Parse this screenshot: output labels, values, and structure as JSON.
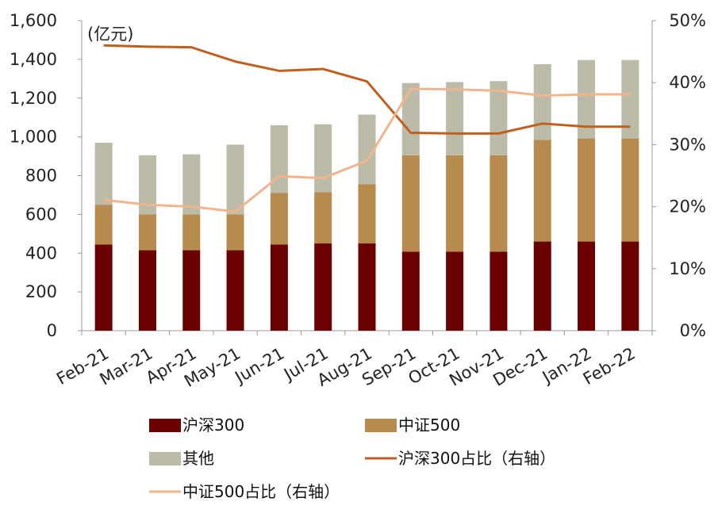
{
  "chart_data": {
    "type": "bar",
    "stacked": true,
    "unit_label": "(亿元)",
    "categories": [
      "Feb-21",
      "Mar-21",
      "Apr-21",
      "May-21",
      "Jun-21",
      "Jul-21",
      "Aug-21",
      "Sep-21",
      "Oct-21",
      "Nov-21",
      "Dec-21",
      "Jan-22",
      "Feb-22"
    ],
    "y_left": {
      "min": 0,
      "max": 1600,
      "ticks": [
        "0",
        "200",
        "400",
        "600",
        "800",
        "1,000",
        "1,200",
        "1,400",
        "1,600"
      ]
    },
    "y_right": {
      "min": 0,
      "max": 50,
      "ticks": [
        "0%",
        "10%",
        "20%",
        "30%",
        "40%",
        "50%"
      ]
    },
    "bar_series": [
      {
        "name": "沪深300",
        "color": "#6B0000",
        "values": [
          445,
          415,
          415,
          415,
          445,
          450,
          450,
          408,
          408,
          408,
          460,
          460,
          460
        ]
      },
      {
        "name": "中证500",
        "color": "#B78A4E",
        "values": [
          205,
          185,
          185,
          185,
          265,
          265,
          305,
          497,
          497,
          497,
          525,
          532,
          532
        ]
      },
      {
        "name": "其他",
        "color": "#BCBBA8",
        "values": [
          320,
          305,
          310,
          360,
          350,
          350,
          360,
          373,
          378,
          383,
          390,
          405,
          405
        ]
      }
    ],
    "line_series": [
      {
        "name": "沪深300占比（右轴）",
        "color": "#C0601E",
        "values": [
          46,
          45.8,
          45.7,
          43.4,
          41.9,
          42.2,
          40.2,
          31.9,
          31.8,
          31.8,
          33.4,
          32.9,
          32.9
        ]
      },
      {
        "name": "中证500占比（右轴）",
        "color": "#F2B48C",
        "values": [
          21.1,
          20.3,
          20.0,
          19.2,
          24.9,
          24.6,
          27.4,
          39.0,
          38.9,
          38.7,
          37.9,
          38.1,
          38.1
        ]
      }
    ],
    "legend_position": "bottom"
  }
}
